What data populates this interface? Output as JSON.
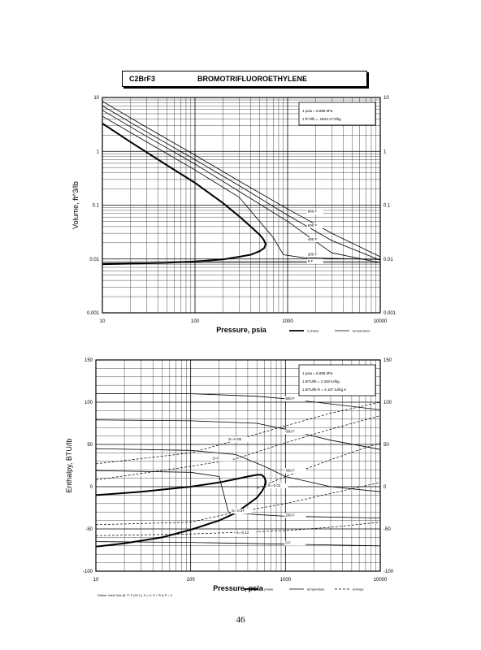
{
  "header": {
    "formula": "C2BrF3",
    "compound": "BROMOTRIFLUOROETHYLENE"
  },
  "page_number": "46",
  "footnote": "Datum: Ideal Gas @ 77 F (25 C), H = 0, S + R ln P = 0",
  "colors": {
    "ink": "#000000",
    "paper": "#ffffff",
    "grid": "#000000"
  },
  "chart_data": [
    {
      "type": "line",
      "log_x": true,
      "log_y": true,
      "xlim": [
        10,
        10000
      ],
      "ylim": [
        0.001,
        10
      ],
      "xlabel": "Pressure,  psia",
      "ylabel": "Volume, ft^3/lb",
      "x_ticks": [
        "10",
        "100",
        "1000",
        "10000"
      ],
      "y_ticks": [
        "0.001",
        "0.01",
        "0.1",
        "1",
        "10"
      ],
      "grid": true,
      "legend": "bottom-right",
      "legend_items": [
        "2 phase",
        "temperature"
      ],
      "notes": [
        "1 psia  =  6.895 kPa",
        "1 ft^3/lb  =  .0624 m^3/kg"
      ],
      "two_phase": [
        [
          10,
          3.3
        ],
        [
          20,
          1.5
        ],
        [
          50,
          0.55
        ],
        [
          100,
          0.26
        ],
        [
          200,
          0.11
        ],
        [
          300,
          0.062
        ],
        [
          400,
          0.04
        ],
        [
          500,
          0.028
        ],
        [
          550,
          0.023
        ],
        [
          580,
          0.019
        ],
        [
          560,
          0.016
        ],
        [
          500,
          0.014
        ],
        [
          400,
          0.012
        ],
        [
          300,
          0.011
        ],
        [
          200,
          0.0098
        ],
        [
          100,
          0.009
        ],
        [
          50,
          0.0085
        ],
        [
          20,
          0.0082
        ],
        [
          10,
          0.008
        ]
      ],
      "series": [
        {
          "name": "800 F",
          "points": [
            [
              10,
              8.5
            ],
            [
              30,
              2.8
            ],
            [
              100,
              0.85
            ],
            [
              300,
              0.28
            ],
            [
              1000,
              0.085
            ],
            [
              3000,
              0.03
            ],
            [
              10000,
              0.011
            ]
          ]
        },
        {
          "name": "600 F",
          "points": [
            [
              10,
              7.0
            ],
            [
              30,
              2.3
            ],
            [
              100,
              0.7
            ],
            [
              300,
              0.23
            ],
            [
              1000,
              0.065
            ],
            [
              3000,
              0.022
            ],
            [
              10000,
              0.0095
            ]
          ]
        },
        {
          "name": "400 F",
          "points": [
            [
              10,
              5.8
            ],
            [
              30,
              1.9
            ],
            [
              100,
              0.58
            ],
            [
              300,
              0.18
            ],
            [
              1000,
              0.05
            ],
            [
              1500,
              0.03
            ],
            [
              3000,
              0.013
            ],
            [
              10000,
              0.0085
            ]
          ]
        },
        {
          "name": "200 F",
          "points": [
            [
              10,
              4.5
            ],
            [
              30,
              1.5
            ],
            [
              100,
              0.45
            ],
            [
              300,
              0.14
            ],
            [
              700,
              0.025
            ],
            [
              900,
              0.012
            ],
            [
              1500,
              0.0105
            ],
            [
              10000,
              0.0098
            ]
          ]
        },
        {
          "name": "0 F",
          "points": [
            [
              10,
              0.0085
            ],
            [
              100,
              0.0086
            ],
            [
              1000,
              0.0087
            ],
            [
              10000,
              0.0086
            ]
          ]
        }
      ],
      "annotations": [
        "800 F",
        "600 F",
        "400 F",
        "200 F",
        "0 F"
      ]
    },
    {
      "type": "line",
      "log_x": true,
      "log_y": false,
      "xlim": [
        10,
        10000
      ],
      "ylim": [
        -100,
        150
      ],
      "xlabel": "Pressure,  psia",
      "ylabel": "Enthalpy, BTU/lb",
      "x_ticks": [
        "10",
        "100",
        "1000",
        "10000"
      ],
      "y_ticks": [
        "-100",
        "-50",
        "0",
        "50",
        "100",
        "150"
      ],
      "grid": true,
      "legend": "bottom-right",
      "legend_items": [
        "2 phase",
        "temperature",
        "entropy"
      ],
      "notes": [
        "1 psia  =  6.895 kPa",
        "1 BTU/lb  =  2.326 kJ/kg",
        "1 BTU/lb R  =  4.187 kJ/kg K"
      ],
      "two_phase": [
        [
          10,
          -10
        ],
        [
          30,
          -6
        ],
        [
          100,
          0
        ],
        [
          200,
          5
        ],
        [
          300,
          9
        ],
        [
          400,
          12
        ],
        [
          500,
          14
        ],
        [
          560,
          14
        ],
        [
          600,
          11
        ],
        [
          620,
          6
        ],
        [
          600,
          0
        ],
        [
          560,
          -6
        ],
        [
          500,
          -13
        ],
        [
          400,
          -21
        ],
        [
          300,
          -31
        ],
        [
          200,
          -40
        ],
        [
          100,
          -51
        ],
        [
          50,
          -60
        ],
        [
          20,
          -67
        ],
        [
          10,
          -71
        ]
      ],
      "series": [
        {
          "name": "800 F",
          "points": [
            [
              10,
              110
            ],
            [
              100,
              110
            ],
            [
              500,
              107
            ],
            [
              1000,
              104
            ],
            [
              3000,
              98
            ],
            [
              10000,
              91
            ]
          ]
        },
        {
          "name": "600 F",
          "points": [
            [
              10,
              79
            ],
            [
              100,
              78
            ],
            [
              500,
              75
            ],
            [
              1000,
              68
            ],
            [
              3000,
              55
            ],
            [
              10000,
              44
            ]
          ]
        },
        {
          "name": "400 F",
          "points": [
            [
              10,
              45
            ],
            [
              100,
              43
            ],
            [
              300,
              38
            ],
            [
              600,
              24
            ],
            [
              1000,
              12
            ],
            [
              3000,
              0
            ],
            [
              10000,
              -6
            ]
          ]
        },
        {
          "name": "200 F",
          "points": [
            [
              10,
              19
            ],
            [
              100,
              17
            ],
            [
              200,
              12
            ],
            [
              250,
              -30
            ],
            [
              500,
              -33
            ],
            [
              1000,
              -35
            ],
            [
              10000,
              -37
            ]
          ]
        },
        {
          "name": "0 F",
          "points": [
            [
              10,
              -65
            ],
            [
              100,
              -66
            ],
            [
              1000,
              -68
            ],
            [
              10000,
              -70
            ]
          ]
        }
      ],
      "entropy_lines": [
        {
          "name": "S=-0.05",
          "points": [
            [
              10,
              27
            ],
            [
              100,
              40
            ],
            [
              300,
              55
            ],
            [
              1000,
              72
            ],
            [
              3000,
              87
            ],
            [
              10000,
              100
            ]
          ]
        },
        {
          "name": "S=0",
          "points": [
            [
              10,
              8
            ],
            [
              100,
              24
            ],
            [
              300,
              33
            ],
            [
              1000,
              52
            ],
            [
              3000,
              68
            ],
            [
              10000,
              84
            ]
          ]
        },
        {
          "name": "S=-0.02",
          "points": [
            [
              500,
              -2
            ],
            [
              1000,
              12
            ],
            [
              3000,
              32
            ],
            [
              10000,
              52
            ]
          ]
        },
        {
          "name": "S=-0.07",
          "points": [
            [
              10,
              -45
            ],
            [
              100,
              -42
            ],
            [
              250,
              -32
            ],
            [
              1000,
              -20
            ],
            [
              3000,
              -8
            ],
            [
              10000,
              5
            ]
          ]
        },
        {
          "name": "S=-0.12",
          "points": [
            [
              10,
              -58
            ],
            [
              100,
              -56
            ],
            [
              1000,
              -52
            ],
            [
              3000,
              -48
            ],
            [
              10000,
              -42
            ]
          ]
        }
      ],
      "annotations": [
        "800 F",
        "600 F",
        "400 F",
        "200 F",
        "0 F",
        "S=-0.05",
        "S=0",
        "S=-0.02",
        "S=-0.07",
        "S=-0.12"
      ]
    }
  ]
}
